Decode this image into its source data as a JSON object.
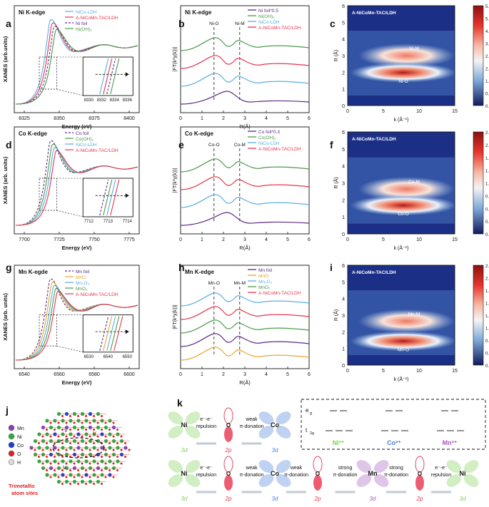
{
  "panel_labels": [
    "a",
    "b",
    "c",
    "d",
    "e",
    "f",
    "g",
    "h",
    "i",
    "j",
    "k"
  ],
  "colors": {
    "foil": "#5b2a86",
    "ldh": "#5aaee0",
    "tac": "#e8344e",
    "ohx": "#4c9a4c",
    "mno": "#e8a82a",
    "heat_lo": "#1c2f86",
    "heat_hi": "#b51a1a",
    "ni_green": "#7fcf56",
    "co_blue": "#4a7fd8",
    "mn_purple": "#a65bbf"
  },
  "row1": {
    "xanes": {
      "title": "Ni K-edge",
      "xlabel": "Energy (eV)",
      "ylabel": "XANES (arb.units)",
      "xticks": [
        "8325",
        "8350",
        "8375",
        "8400"
      ],
      "legend": [
        "NiCo-LDH",
        "A-NiCoMn-TAC/LDH",
        "Ni foil",
        "Ni(OH)₂"
      ],
      "inset_ticks": [
        "8330",
        "8332",
        "8334",
        "8336"
      ]
    },
    "ft": {
      "title": "Ni K-edge",
      "ylabel": "|FT(k³χ(k))|",
      "xlabel": "R(Å)",
      "xticks": [
        "0",
        "1",
        "2",
        "3",
        "4",
        "5",
        "6"
      ],
      "legend": [
        "Ni foil*0.5",
        "Ni(OH)₂",
        "NiCo-LDH",
        "A-NiCoMn-TAC/LDH"
      ],
      "markers": [
        "Ni-O",
        "Ni-M"
      ]
    },
    "wt": {
      "title": "A-NiCoMn-TAC/LDH",
      "xlabel": "k (Å⁻¹)",
      "ylabel": "R (Å)",
      "xticks": [
        "0",
        "5",
        "10",
        "15"
      ],
      "yticks": [
        "0",
        "1",
        "2",
        "3",
        "4",
        "5",
        "6"
      ],
      "spots": [
        "Ni-M",
        "Ni-O"
      ],
      "cbar": [
        "5.6",
        "5.0",
        "4.2",
        "3.5",
        "2.8",
        "2.1",
        "1.4",
        "0.7",
        "0.0"
      ]
    }
  },
  "row2": {
    "xanes": {
      "title": "Co K-edge",
      "xlabel": "Energy (eV)",
      "ylabel": "XANES (arb. units)",
      "xticks": [
        "7700",
        "7725",
        "7750",
        "7775"
      ],
      "legend": [
        "Co foil",
        "Co(OH)₂",
        "NiCo-LDH",
        "A-NiCoMn-TAC/LDH"
      ],
      "inset_ticks": [
        "7712",
        "7713",
        "7714"
      ]
    },
    "ft": {
      "title": "Co K-edge",
      "ylabel": "|FT(k³χ(k))|",
      "xlabel": "R(Å)",
      "xticks": [
        "0",
        "1",
        "2",
        "3",
        "4",
        "5",
        "6"
      ],
      "legend": [
        "Co foil*0.3",
        "Co(OH)₂",
        "NiCo-LDH",
        "A-NiCoMn-TAC/LDH"
      ],
      "markers": [
        "Co-O",
        "Co-M"
      ]
    },
    "wt": {
      "title": "A-NiCoMn-TAC/LDH",
      "xlabel": "k (Å⁻¹)",
      "ylabel": "R (Å)",
      "xticks": [
        "0",
        "5",
        "10",
        "15"
      ],
      "yticks": [
        "0",
        "1",
        "2",
        "3",
        "4",
        "5",
        "6"
      ],
      "spots": [
        "Co-M",
        "Co-O"
      ],
      "cbar": [
        "2.4",
        "2.1",
        "1.8",
        "1.5",
        "1.2",
        "0.9",
        "0.6",
        "0.3",
        "0.0"
      ]
    }
  },
  "row3": {
    "xanes": {
      "title": "Mn K-egde",
      "xlabel": "Energy (eV)",
      "ylabel": "XANES (arb. units)",
      "xticks": [
        "6540",
        "6560",
        "6580",
        "6600"
      ],
      "legend": [
        "Mn foil",
        "MnO",
        "Mn₂O₃",
        "MnO₂",
        "A-NiCoMn-TAC/LDH"
      ],
      "inset_ticks": [
        "6530",
        "6540",
        "6550"
      ]
    },
    "ft": {
      "title": "Mn K-edge",
      "ylabel": "|FT(k³χ(k))|",
      "xlabel": "R(Å)",
      "xticks": [
        "0",
        "1",
        "2",
        "3",
        "4",
        "5",
        "6"
      ],
      "legend": [
        "Mn foil",
        "MnO",
        "Mn₂O₃",
        "MnO₂",
        "A-NiCoMn-TAC/LDH"
      ],
      "markers": [
        "Mn-O",
        "Mn-M"
      ]
    },
    "wt": {
      "title": "A-NiCoMn-TAC/LDH",
      "xlabel": "k (Å⁻¹)",
      "ylabel": "R (Å)",
      "xticks": [
        "0",
        "5",
        "10",
        "15"
      ],
      "yticks": [
        "0",
        "1",
        "2",
        "3",
        "4",
        "5",
        "6"
      ],
      "spots": [
        "Mn-M",
        "Mn-O"
      ],
      "cbar": [
        "2.5",
        "2.2",
        "1.9",
        "1.6",
        "1.3",
        "1.0",
        "0.6",
        "0.3",
        "0.0"
      ]
    }
  },
  "panel_j": {
    "legend": [
      "Mn",
      "Ni",
      "Co",
      "O",
      "H"
    ],
    "vacancy_label": "V",
    "caption_line1": "Trimetallic",
    "caption_line2": "atom sites"
  },
  "panel_k": {
    "top_row": {
      "atoms": [
        "Ni",
        "O",
        "Co"
      ],
      "orbitals": [
        "3d",
        "2p",
        "3d"
      ],
      "labels": [
        [
          "e⁻-e⁻",
          "repulsion"
        ],
        [
          "weak",
          "π-donation"
        ]
      ]
    },
    "bottom_row": {
      "atoms": [
        "Ni",
        "O",
        "Co",
        "O",
        "Mn",
        "O",
        "Ni"
      ],
      "orbitals": [
        "3d",
        "2p",
        "3d",
        "2p",
        "3d",
        "2p",
        "3d"
      ],
      "labels": [
        [
          "e⁻-e⁻",
          "repulsion"
        ],
        [
          "weak",
          "π-donation"
        ],
        [
          "weak",
          "π-donation"
        ],
        [
          "strong",
          "π-donation"
        ],
        [
          "strong",
          "π-donation"
        ],
        [
          "e⁻-e⁻",
          "repulsion"
        ]
      ]
    },
    "orbital_box": {
      "eg": "e",
      "eg_sub": "g",
      "t2g": "t",
      "t2g_sub": "2g",
      "ions": [
        "Ni²⁺",
        "Co³⁺",
        "Mn³⁺"
      ]
    }
  }
}
